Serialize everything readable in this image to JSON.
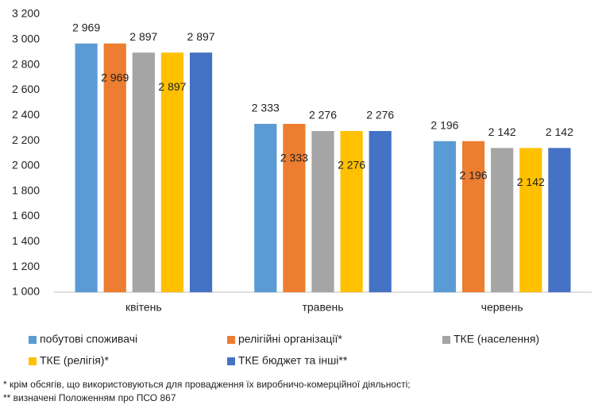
{
  "chart_data": {
    "type": "bar",
    "categories": [
      "квітень",
      "травень",
      "червень"
    ],
    "series": [
      {
        "name": "побутові споживачі",
        "color": "#5b9bd5",
        "values": [
          2969,
          2333,
          2196
        ],
        "value_labels": [
          "2 969",
          "2 333",
          "2 196"
        ]
      },
      {
        "name": "релігійні організації*",
        "color": "#ed7d31",
        "values": [
          2969,
          2333,
          2196
        ],
        "value_labels": [
          "2 969",
          "2 333",
          "2 196"
        ]
      },
      {
        "name": "ТКЕ (населення)",
        "color": "#a5a5a5",
        "values": [
          2897,
          2276,
          2142
        ],
        "value_labels": [
          "2 897",
          "2 276",
          "2 142"
        ]
      },
      {
        "name": "ТКЕ (релігія)*",
        "color": "#ffc000",
        "values": [
          2897,
          2276,
          2142
        ],
        "value_labels": [
          "2 897",
          "2 276",
          "2 142"
        ]
      },
      {
        "name": "ТКЕ бюджет та інші**",
        "color": "#4472c4",
        "values": [
          2897,
          2276,
          2142
        ],
        "value_labels": [
          "2 897",
          "2 276",
          "2 142"
        ]
      }
    ],
    "ylim": [
      1000,
      3200
    ],
    "yticks": [
      {
        "value": 1000,
        "label": "1 000"
      },
      {
        "value": 1200,
        "label": "1 200"
      },
      {
        "value": 1400,
        "label": "1 400"
      },
      {
        "value": 1600,
        "label": "1 600"
      },
      {
        "value": 1800,
        "label": "1 800"
      },
      {
        "value": 2000,
        "label": "2 000"
      },
      {
        "value": 2200,
        "label": "2 200"
      },
      {
        "value": 2400,
        "label": "2 400"
      },
      {
        "value": 2600,
        "label": "2 600"
      },
      {
        "value": 2800,
        "label": "2 800"
      },
      {
        "value": 3000,
        "label": "3 000"
      },
      {
        "value": 3200,
        "label": "3 200"
      }
    ],
    "grid": false,
    "legend": "bottom",
    "footnotes": [
      "* крім обсягів, що використовуються для провадження їх виробничо-комерційної діяльності;",
      "** визначені Положенням про ПСО 867"
    ]
  }
}
